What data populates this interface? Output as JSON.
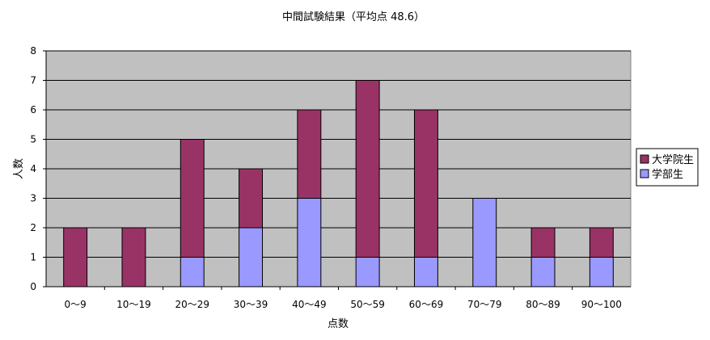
{
  "chart_data": {
    "type": "bar",
    "stacked": true,
    "title": "中間試験結果（平均点 48.6）",
    "xlabel": "点数",
    "ylabel": "人数",
    "ylim": [
      0,
      8
    ],
    "yticks": [
      0,
      1,
      2,
      3,
      4,
      5,
      6,
      7,
      8
    ],
    "grid": true,
    "legend_position": "right",
    "categories": [
      "0〜9",
      "10〜19",
      "20〜29",
      "30〜39",
      "40〜49",
      "50〜59",
      "60〜69",
      "70〜79",
      "80〜89",
      "90〜100"
    ],
    "series": [
      {
        "name": "学部生",
        "color": "#9999ff",
        "values": [
          0,
          0,
          1,
          2,
          3,
          1,
          1,
          3,
          1,
          1
        ]
      },
      {
        "name": "大学院生",
        "color": "#993366",
        "values": [
          2,
          2,
          4,
          2,
          3,
          6,
          5,
          0,
          1,
          1
        ]
      }
    ],
    "legend_order": [
      "大学院生",
      "学部生"
    ],
    "plot_background": "#c0c0c0"
  }
}
